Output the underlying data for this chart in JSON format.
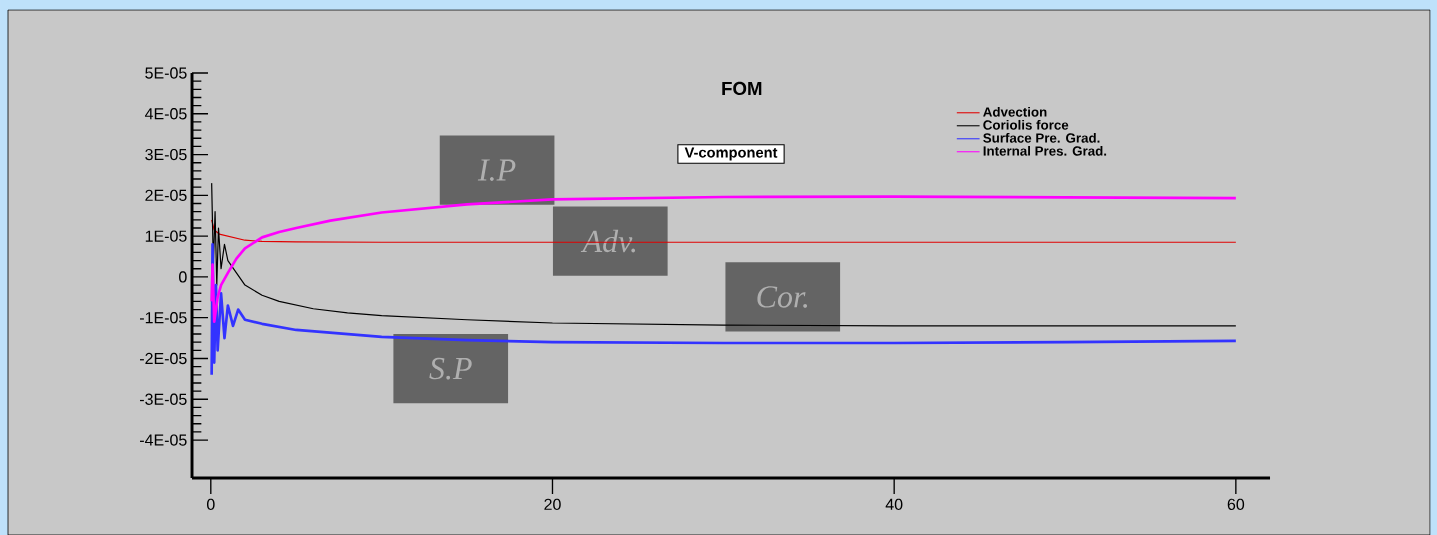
{
  "chart_data": {
    "type": "line",
    "title": "FOM",
    "subtitle": "V-component",
    "xlim": [
      -1.1,
      62
    ],
    "xticks": [
      0,
      20,
      40,
      60
    ],
    "ylim": [
      -4.93e-05,
      5e-05
    ],
    "yticks": [
      {
        "value": 5e-05,
        "label": "5E-05"
      },
      {
        "value": 4e-05,
        "label": "4E-05"
      },
      {
        "value": 3e-05,
        "label": "3E-05"
      },
      {
        "value": 2e-05,
        "label": "2E-05"
      },
      {
        "value": 1e-05,
        "label": "1E-05"
      },
      {
        "value": 0,
        "label": "0"
      },
      {
        "value": -1e-05,
        "label": "-1E-05"
      },
      {
        "value": -2e-05,
        "label": "-2E-05"
      },
      {
        "value": -3e-05,
        "label": "-3E-05"
      },
      {
        "value": -4e-05,
        "label": "-4E-05"
      }
    ],
    "legend": "top right",
    "series": [
      {
        "name": "Advection",
        "color": "#e00000",
        "x": [
          0.05,
          0.2,
          0.5,
          1,
          1.5,
          2,
          3,
          5,
          10,
          15,
          20,
          30,
          40,
          50,
          60
        ],
        "values": [
          1.4e-05,
          1.15e-05,
          1.05e-05,
          1e-05,
          9.5e-06,
          9e-06,
          8.7e-06,
          8.6e-06,
          8.5e-06,
          8.5e-06,
          8.5e-06,
          8.5e-06,
          8.5e-06,
          8.5e-06,
          8.5e-06
        ]
      },
      {
        "name": "Coriolis force",
        "color": "#000000",
        "x": [
          0.05,
          0.15,
          0.25,
          0.35,
          0.45,
          0.6,
          0.8,
          1,
          1.5,
          2,
          3,
          4,
          6,
          8,
          10,
          15,
          20,
          30,
          40,
          50,
          60
        ],
        "values": [
          2.3e-05,
          3e-06,
          1.6e-05,
          -2e-06,
          1.2e-05,
          2e-06,
          8e-06,
          4e-06,
          1e-06,
          -2e-06,
          -4.5e-06,
          -6e-06,
          -7.8e-06,
          -8.8e-06,
          -9.5e-06,
          -1.05e-05,
          -1.13e-05,
          -1.18e-05,
          -1.2e-05,
          -1.2e-05,
          -1.2e-05
        ]
      },
      {
        "name": "Surface Pre. Grad.",
        "color": "#3333ff",
        "x": [
          0.05,
          0.1,
          0.2,
          0.3,
          0.4,
          0.6,
          0.8,
          1,
          1.3,
          1.6,
          2,
          3,
          5,
          10,
          15,
          20,
          30,
          40,
          50,
          60
        ],
        "values": [
          -2.4e-05,
          8e-06,
          -2.1e-05,
          -2e-06,
          -1.8e-05,
          -4e-06,
          -1.5e-05,
          -7e-06,
          -1.2e-05,
          -8e-06,
          -1.05e-05,
          -1.15e-05,
          -1.3e-05,
          -1.47e-05,
          -1.55e-05,
          -1.6e-05,
          -1.62e-05,
          -1.62e-05,
          -1.6e-05,
          -1.57e-05
        ]
      },
      {
        "name": "Internal Pres. Grad.",
        "color": "#ff00ff",
        "x": [
          0.05,
          0.1,
          0.2,
          0.4,
          0.6,
          1,
          1.5,
          2,
          3,
          4,
          5,
          7,
          10,
          15,
          20,
          30,
          40,
          50,
          60
        ],
        "values": [
          -6e-06,
          3e-06,
          -1.1e-05,
          -5e-06,
          -2e-06,
          1e-06,
          4.5e-06,
          7e-06,
          9.7e-06,
          1.1e-05,
          1.2e-05,
          1.38e-05,
          1.58e-05,
          1.78e-05,
          1.9e-05,
          1.96e-05,
          1.97e-05,
          1.95e-05,
          1.93e-05
        ]
      }
    ],
    "annotations": [
      "I.P",
      "Adv.",
      "Cor.",
      "S.P"
    ]
  }
}
